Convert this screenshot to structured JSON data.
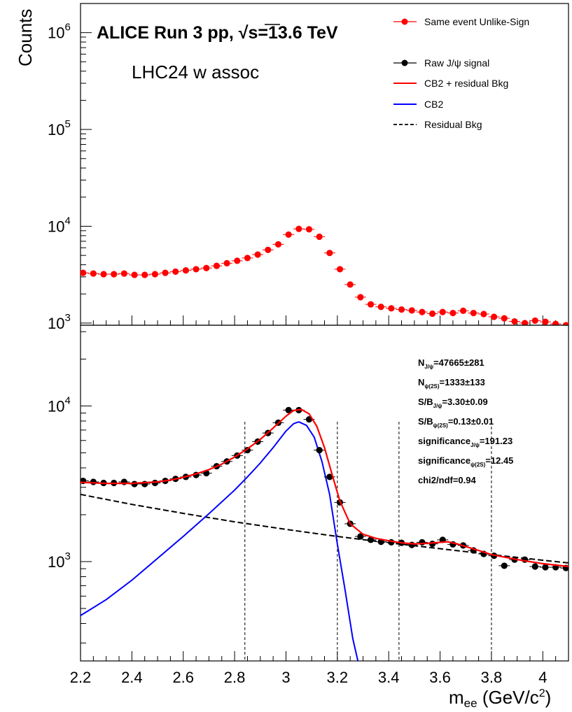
{
  "chart_data": [
    {
      "type": "scatter",
      "panel": "top",
      "ylabel": "Counts",
      "ylabel_power": "",
      "yscale": "log",
      "ylim": [
        950,
        2000000
      ],
      "xlim": [
        2.2,
        4.1
      ],
      "yticks": [
        {
          "value": 1000,
          "base": "10",
          "exp": "3"
        },
        {
          "value": 10000,
          "base": "10",
          "exp": "4"
        },
        {
          "value": 100000,
          "base": "10",
          "exp": "5"
        },
        {
          "value": 1000000,
          "base": "10",
          "exp": "6"
        }
      ],
      "title_prefix": "ALICE Run 3 pp, ",
      "title_sqrt": "√s",
      "title_suffix": "=13.6 TeV",
      "subtitle": "LHC24 w assoc",
      "legend_position": "top-right",
      "series": [
        {
          "name": "Same event Unlike-Sign",
          "color": "#ff0000",
          "x": [
            2.21,
            2.25,
            2.29,
            2.33,
            2.37,
            2.41,
            2.45,
            2.49,
            2.53,
            2.57,
            2.61,
            2.65,
            2.69,
            2.73,
            2.77,
            2.81,
            2.85,
            2.89,
            2.93,
            2.97,
            3.01,
            3.05,
            3.09,
            3.13,
            3.17,
            3.21,
            3.25,
            3.29,
            3.33,
            3.37,
            3.41,
            3.45,
            3.49,
            3.53,
            3.57,
            3.61,
            3.65,
            3.69,
            3.73,
            3.77,
            3.81,
            3.85,
            3.89,
            3.93,
            3.97,
            4.01,
            4.05,
            4.09
          ],
          "y": [
            3300,
            3250,
            3200,
            3200,
            3250,
            3150,
            3150,
            3200,
            3300,
            3400,
            3500,
            3600,
            3700,
            3900,
            4150,
            4400,
            4700,
            5100,
            5700,
            6500,
            8200,
            9400,
            9300,
            7800,
            5300,
            3600,
            2500,
            1850,
            1560,
            1470,
            1420,
            1380,
            1350,
            1300,
            1250,
            1300,
            1270,
            1340,
            1270,
            1240,
            1160,
            1120,
            1040,
            1000,
            1060,
            1030,
            980,
            950
          ]
        }
      ]
    },
    {
      "type": "scatter",
      "panel": "bottom",
      "xlabel": "m",
      "xlabel_sub": "ee",
      "xlabel_unit_prefix": " (GeV/c",
      "xlabel_unit_sup": "2",
      "xlabel_unit_suffix": ")",
      "yscale": "log",
      "ylim": [
        230,
        33000
      ],
      "xlim": [
        2.2,
        4.1
      ],
      "xticks": [
        2.2,
        2.4,
        2.6,
        2.8,
        3,
        3.2,
        3.4,
        3.6,
        3.8,
        4
      ],
      "xtick_labels": [
        "2.2",
        "2.4",
        "2.6",
        "2.8",
        "3",
        "3.2",
        "3.4",
        "3.6",
        "3.8",
        "4"
      ],
      "yticks": [
        {
          "value": 1000,
          "base": "10",
          "exp": "3"
        },
        {
          "value": 10000,
          "base": "10",
          "exp": "4"
        }
      ],
      "vertical_lines": [
        2.84,
        3.2,
        3.44,
        3.8
      ],
      "series": [
        {
          "name": "Raw J/ψ signal",
          "color": "#000000",
          "x": [
            2.21,
            2.25,
            2.29,
            2.33,
            2.37,
            2.41,
            2.45,
            2.49,
            2.53,
            2.57,
            2.61,
            2.65,
            2.69,
            2.73,
            2.77,
            2.81,
            2.85,
            2.89,
            2.93,
            2.97,
            3.01,
            3.05,
            3.09,
            3.13,
            3.17,
            3.21,
            3.25,
            3.29,
            3.33,
            3.37,
            3.41,
            3.45,
            3.49,
            3.53,
            3.57,
            3.61,
            3.65,
            3.69,
            3.73,
            3.77,
            3.81,
            3.85,
            3.89,
            3.93,
            3.97,
            4.01,
            4.05,
            4.09
          ],
          "y": [
            3300,
            3250,
            3200,
            3200,
            3250,
            3150,
            3150,
            3200,
            3300,
            3400,
            3500,
            3600,
            3700,
            4100,
            4400,
            4800,
            5200,
            5900,
            6700,
            7800,
            9400,
            9400,
            8200,
            5200,
            3500,
            2400,
            1750,
            1450,
            1380,
            1340,
            1330,
            1320,
            1280,
            1330,
            1300,
            1380,
            1290,
            1270,
            1180,
            1120,
            1090,
            940,
            1030,
            1030,
            930,
            920,
            920,
            910
          ]
        },
        {
          "name": "CB2 + residual Bkg",
          "color": "#ff0000",
          "x": [
            2.2,
            2.3,
            2.4,
            2.5,
            2.55,
            2.6,
            2.65,
            2.7,
            2.75,
            2.8,
            2.85,
            2.9,
            2.95,
            3.0,
            3.03,
            3.06,
            3.09,
            3.12,
            3.15,
            3.18,
            3.21,
            3.25,
            3.3,
            3.35,
            3.4,
            3.45,
            3.5,
            3.55,
            3.6,
            3.63,
            3.66,
            3.7,
            3.75,
            3.8,
            3.9,
            4.0,
            4.1
          ],
          "y": [
            3230,
            3180,
            3180,
            3250,
            3340,
            3480,
            3660,
            3900,
            4230,
            4700,
            5300,
            6100,
            7200,
            8600,
            9350,
            9500,
            8900,
            7400,
            5400,
            3600,
            2450,
            1750,
            1500,
            1410,
            1360,
            1320,
            1300,
            1310,
            1330,
            1340,
            1310,
            1250,
            1180,
            1110,
            1030,
            970,
            930
          ]
        },
        {
          "name": "CB2",
          "color": "#0000ff",
          "x": [
            2.2,
            2.3,
            2.4,
            2.5,
            2.6,
            2.7,
            2.8,
            2.85,
            2.9,
            2.95,
            3.0,
            3.03,
            3.05,
            3.08,
            3.11,
            3.14,
            3.17,
            3.2,
            3.23,
            3.26,
            3.28
          ],
          "y": [
            450,
            570,
            760,
            1050,
            1450,
            2030,
            2880,
            3500,
            4300,
            5400,
            6900,
            7700,
            7900,
            7500,
            6300,
            4400,
            2700,
            1300,
            660,
            320,
            230
          ]
        },
        {
          "name": "Residual Bkg",
          "color": "#000000",
          "x": [
            2.2,
            2.4,
            2.6,
            2.8,
            3.0,
            3.2,
            3.4,
            3.6,
            3.8,
            4.0,
            4.1
          ],
          "y": [
            2700,
            2330,
            2040,
            1800,
            1610,
            1450,
            1320,
            1210,
            1110,
            1020,
            980
          ]
        }
      ]
    }
  ],
  "stats": [
    {
      "main": "N",
      "sub": "J/ψ",
      "rest": "=47665±281"
    },
    {
      "main": "N",
      "sub": "ψ(2S)",
      "rest": "=1333±133"
    },
    {
      "main": "S/B",
      "sub": "J/ψ",
      "rest": "=3.30±0.09"
    },
    {
      "main": "S/B",
      "sub": "ψ(2S)",
      "rest": "=0.13±0.01"
    },
    {
      "main": "significance",
      "sub": "J/ψ",
      "rest": "=191.23"
    },
    {
      "main": "significance",
      "sub": "ψ(2S)",
      "rest": "=12.45"
    },
    {
      "main": "chi2/ndf=0.94",
      "sub": "",
      "rest": ""
    }
  ]
}
